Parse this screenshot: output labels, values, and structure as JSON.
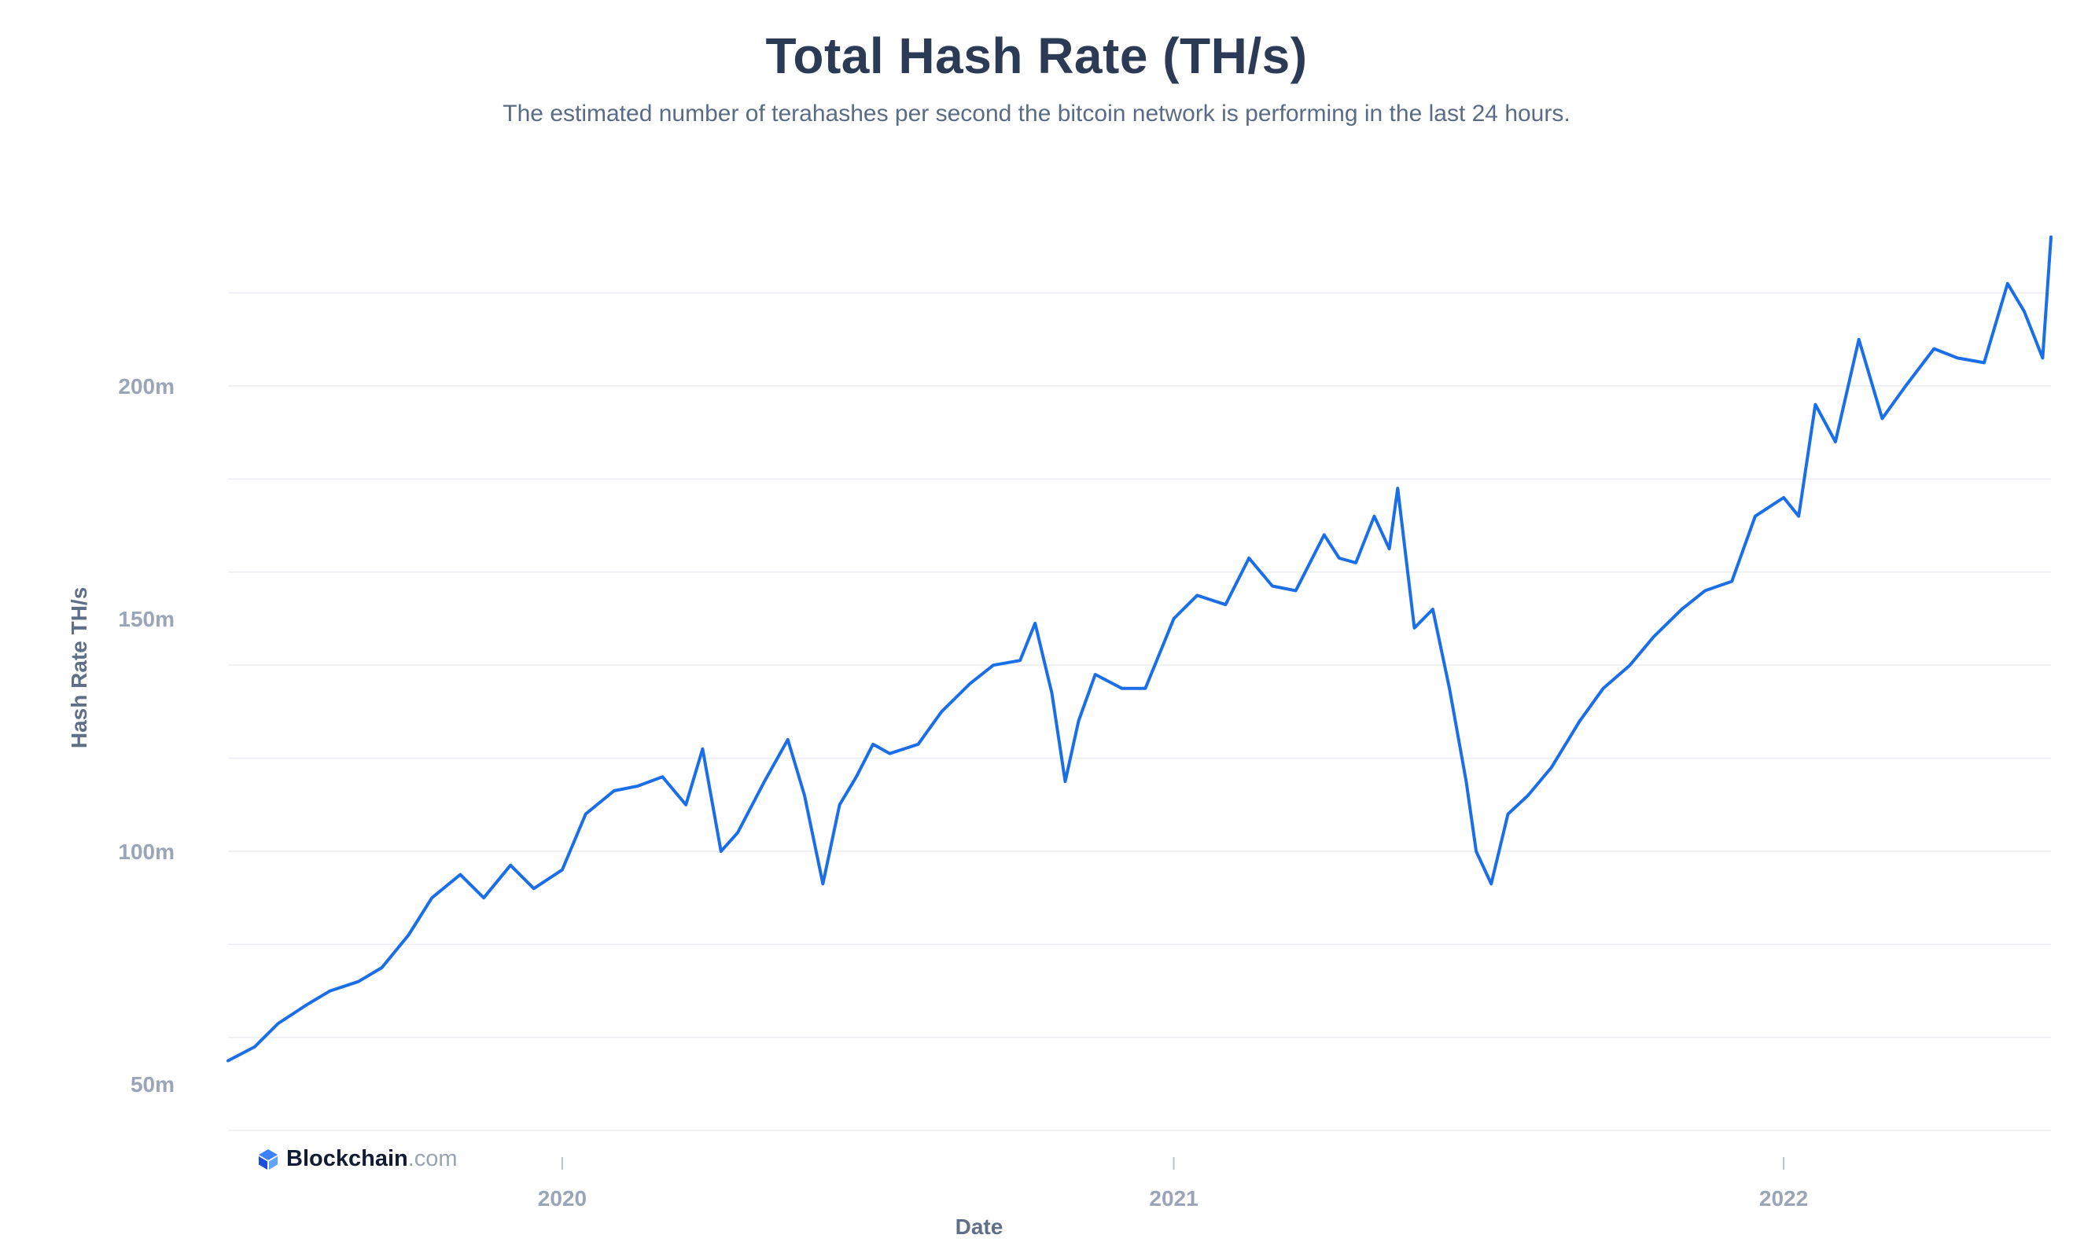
{
  "title": "Total Hash Rate (TH/s)",
  "subtitle": "The estimated number of terahashes per second the bitcoin network is performing in the last 24 hours.",
  "brand": {
    "name": "Blockchain",
    "tld": ".com",
    "icon": "blockchain-logo-icon"
  },
  "colors": {
    "line": "#1a6ee8",
    "grid": "#e9ecf1",
    "tick": "#9aa5b8",
    "axis_title": "#5f6f88",
    "title": "#2b3a55"
  },
  "chart_data": {
    "type": "line",
    "title": "Total Hash Rate (TH/s)",
    "xlabel": "Date",
    "ylabel": "Hash Rate TH/s",
    "x_tick_labels": [
      "2020",
      "2021",
      "2022"
    ],
    "y_tick_labels": [
      "50m",
      "100m",
      "150m",
      "200m"
    ],
    "y_ticks": [
      50,
      100,
      150,
      200
    ],
    "ylim": [
      38,
      238
    ],
    "xlim": [
      "2019-06-15",
      "2022-06-10"
    ],
    "grid": true,
    "legend": "none",
    "series": [
      {
        "x": [
          "2019-06-15",
          "2019-07-01",
          "2019-07-15",
          "2019-08-01",
          "2019-08-15",
          "2019-09-01",
          "2019-09-15",
          "2019-10-01",
          "2019-10-15",
          "2019-11-01",
          "2019-11-15",
          "2019-12-01",
          "2019-12-15",
          "2020-01-01",
          "2020-01-15",
          "2020-02-01",
          "2020-02-15",
          "2020-03-01",
          "2020-03-15",
          "2020-03-25",
          "2020-04-05",
          "2020-04-15",
          "2020-05-01",
          "2020-05-15",
          "2020-05-25",
          "2020-06-05",
          "2020-06-15",
          "2020-06-25",
          "2020-07-05",
          "2020-07-15",
          "2020-08-01",
          "2020-08-15",
          "2020-09-01",
          "2020-09-15",
          "2020-10-01",
          "2020-10-10",
          "2020-10-20",
          "2020-10-28",
          "2020-11-05",
          "2020-11-15",
          "2020-12-01",
          "2020-12-15",
          "2021-01-01",
          "2021-01-15",
          "2021-02-01",
          "2021-02-15",
          "2021-03-01",
          "2021-03-15",
          "2021-04-01",
          "2021-04-10",
          "2021-04-20",
          "2021-05-01",
          "2021-05-10",
          "2021-05-15",
          "2021-05-25",
          "2021-06-05",
          "2021-06-15",
          "2021-06-25",
          "2021-07-01",
          "2021-07-10",
          "2021-07-20",
          "2021-08-01",
          "2021-08-15",
          "2021-09-01",
          "2021-09-15",
          "2021-10-01",
          "2021-10-15",
          "2021-11-01",
          "2021-11-15",
          "2021-12-01",
          "2021-12-15",
          "2022-01-01",
          "2022-01-10",
          "2022-01-20",
          "2022-02-01",
          "2022-02-15",
          "2022-03-01",
          "2022-03-15",
          "2022-04-01",
          "2022-04-15",
          "2022-05-01",
          "2022-05-15",
          "2022-05-25",
          "2022-06-05",
          "2022-06-10"
        ],
        "y": [
          55,
          58,
          63,
          67,
          70,
          72,
          75,
          82,
          90,
          95,
          90,
          97,
          92,
          96,
          108,
          113,
          114,
          116,
          110,
          122,
          100,
          104,
          115,
          124,
          112,
          93,
          110,
          116,
          123,
          121,
          123,
          130,
          136,
          140,
          141,
          149,
          134,
          115,
          128,
          138,
          135,
          135,
          150,
          155,
          153,
          163,
          157,
          156,
          168,
          163,
          162,
          172,
          165,
          178,
          148,
          152,
          135,
          115,
          100,
          93,
          108,
          112,
          118,
          128,
          135,
          140,
          146,
          152,
          156,
          158,
          172,
          176,
          172,
          196,
          188,
          210,
          193,
          200,
          208,
          206,
          205,
          222,
          216,
          206,
          232
        ]
      }
    ]
  }
}
